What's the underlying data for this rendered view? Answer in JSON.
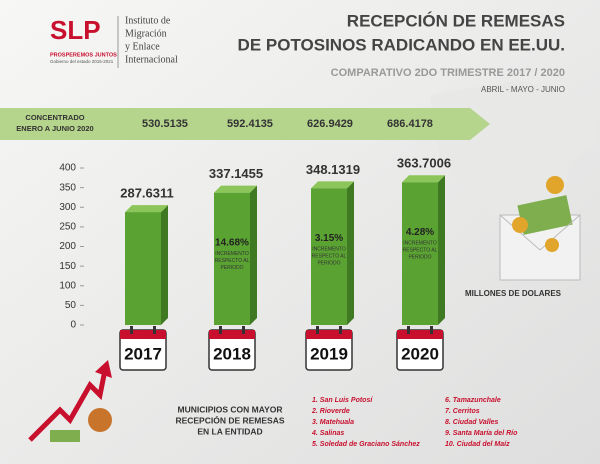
{
  "logo": {
    "mark": "SLP",
    "slogan": "PROSPEREMOS JUNTOS",
    "government": "Gobierno del estado 2015-2021",
    "institute": [
      "Instituto de",
      "Migración",
      "y Enlace",
      "Internacional"
    ]
  },
  "header": {
    "title": [
      "RECEPCIÓN DE REMESAS",
      "DE POTOSINOS RADICANDO EN EE.UU."
    ],
    "subtitle": "COMPARATIVO 2DO TRIMESTRE 2017 / 2020",
    "months": "ABRIL - MAYO - JUNIO"
  },
  "summary_row": {
    "label": [
      "CONCENTRADO",
      "ENERO A JUNIO 2020"
    ],
    "values": [
      "530.5135",
      "592.4135",
      "626.9429",
      "686.4178"
    ]
  },
  "chart_data": {
    "type": "bar",
    "categories": [
      "2017",
      "2018",
      "2019",
      "2020"
    ],
    "values": [
      287.6311,
      337.1455,
      348.1319,
      363.7006
    ],
    "color": "#5aa332",
    "ylim": [
      0,
      400
    ],
    "yticks": [
      0,
      50,
      100,
      150,
      200,
      250,
      300,
      350,
      400
    ],
    "grid": false,
    "y_label": "MILLONES DE DOLARES",
    "growth_labels": [
      null,
      "14.68%",
      "3.15%",
      "4.28%"
    ],
    "growth_note": [
      "INCREMENTO",
      "RESPECTO AL",
      "PERIODO"
    ]
  },
  "municipalities": {
    "title": [
      "MUNICIPIOS CON MAYOR",
      "RECEPCIÓN DE REMESAS",
      "EN LA ENTIDAD"
    ],
    "items": [
      "1. San Luis Potosí",
      "2. Rioverde",
      "3. Matehuala",
      "4. Salinas",
      "5. Soledad de Graciano Sánchez",
      "6. Tamazunchale",
      "7. Cerritos",
      "8. Ciudad Valles",
      "9. Santa María del Río",
      "10. Ciudad del Maíz"
    ]
  }
}
